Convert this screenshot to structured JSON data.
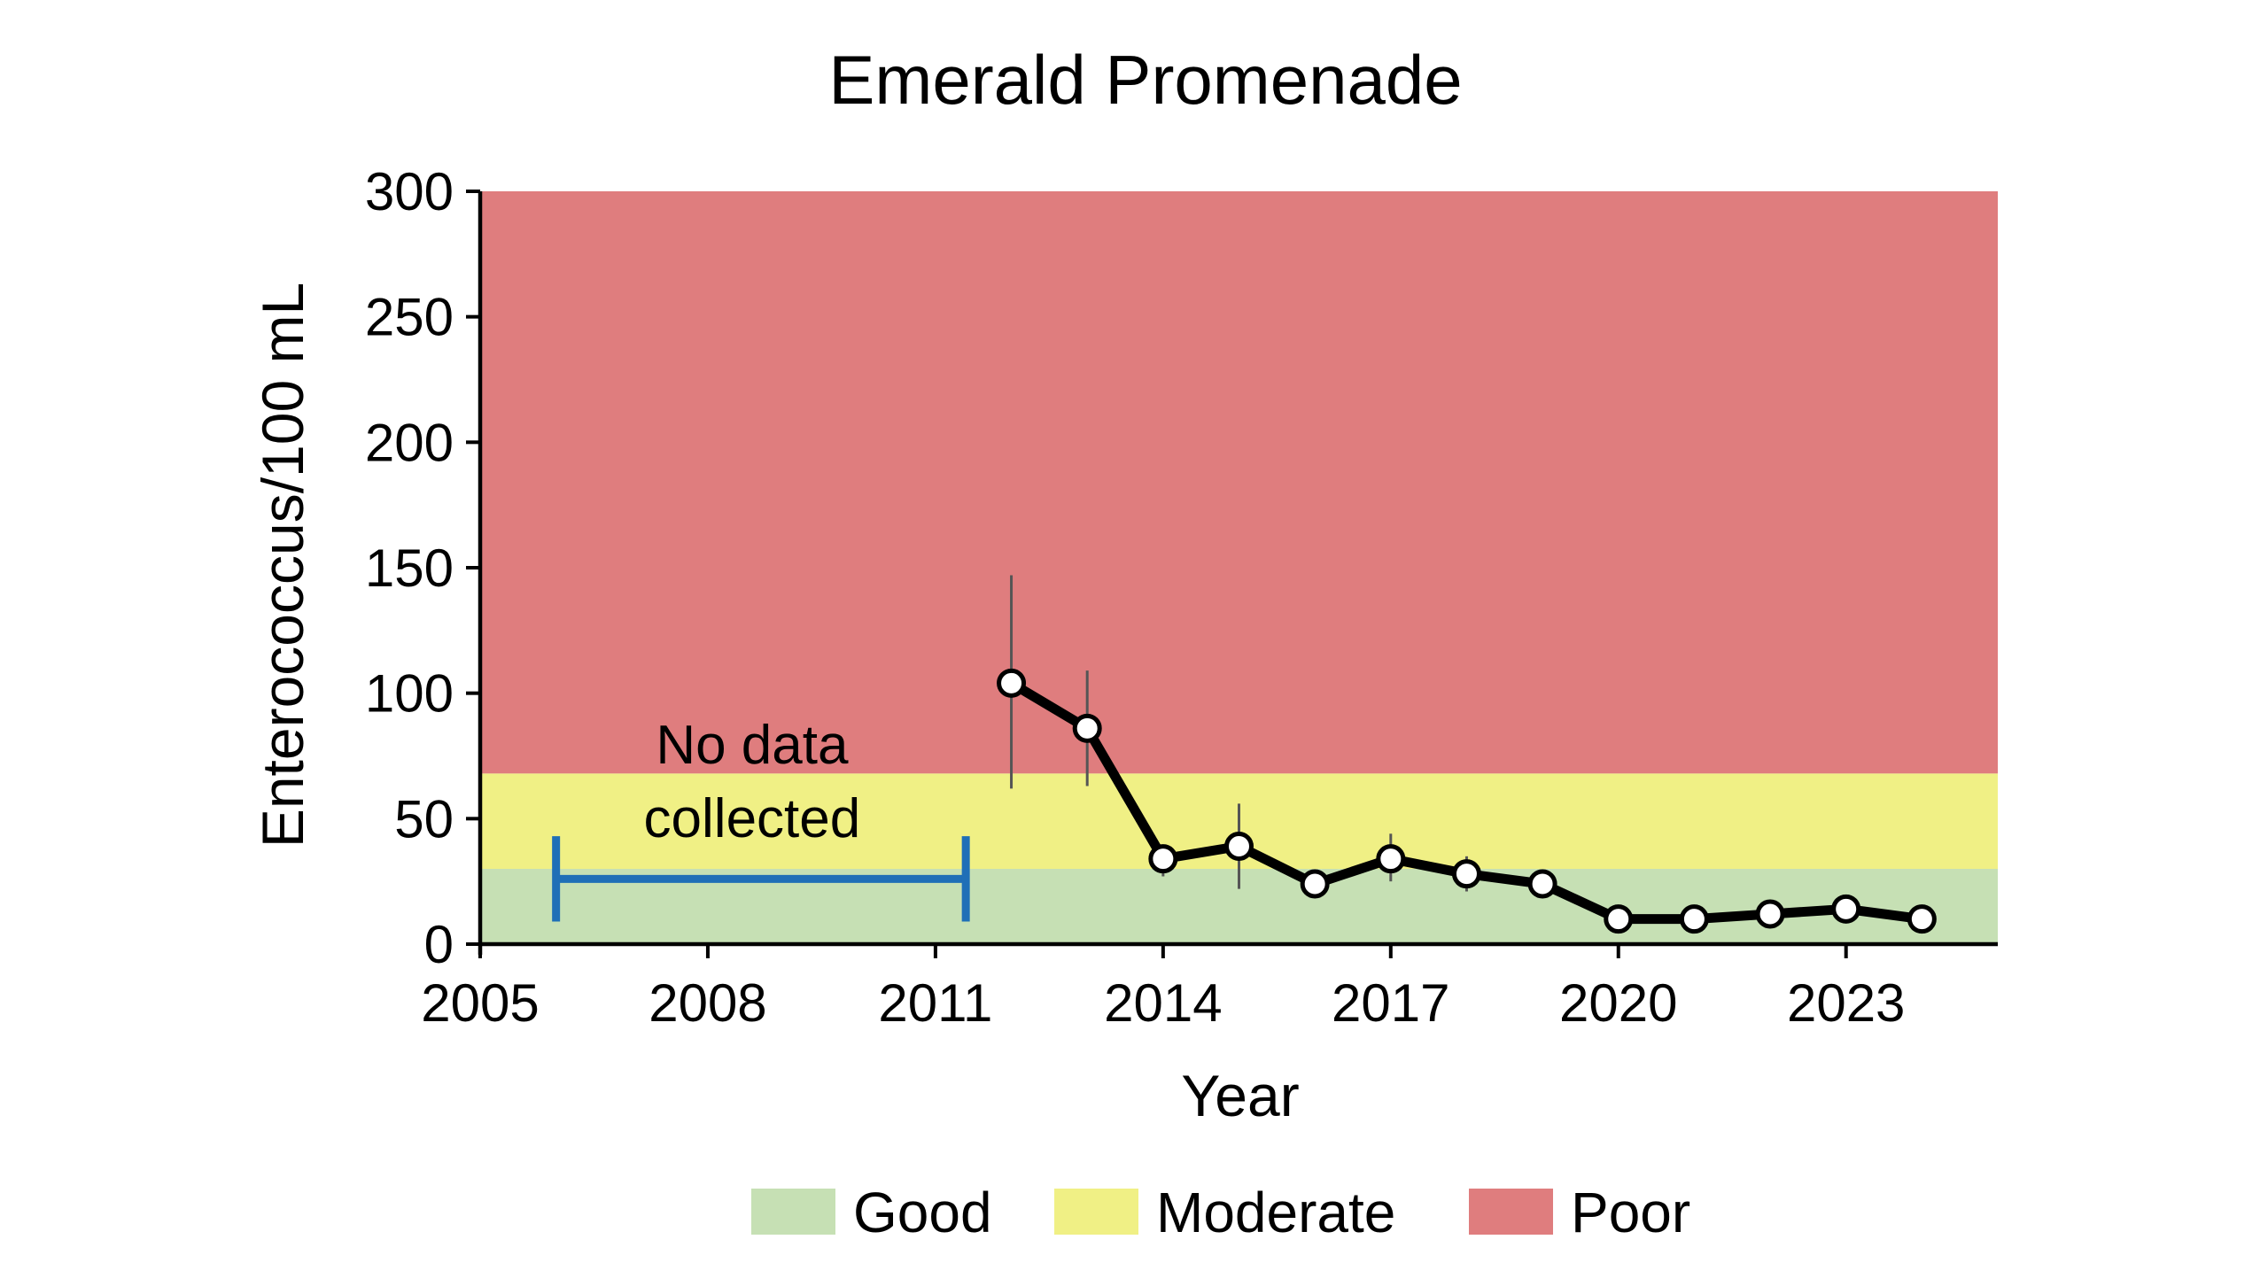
{
  "chart_data": {
    "type": "line",
    "title": "Emerald Promenade",
    "xlabel": "Year",
    "ylabel": "Enterococcus/100 mL",
    "xlim": [
      2005,
      2025
    ],
    "ylim": [
      0,
      300
    ],
    "x_ticks": [
      2005,
      2008,
      2011,
      2014,
      2017,
      2020,
      2023
    ],
    "y_ticks": [
      0,
      50,
      100,
      150,
      200,
      250,
      300
    ],
    "grid": false,
    "legend_position": "bottom",
    "bands": [
      {
        "name": "Good",
        "from": 0,
        "to": 30,
        "color": "#c6e0b4"
      },
      {
        "name": "Moderate",
        "from": 30,
        "to": 68,
        "color": "#f0f085"
      },
      {
        "name": "Poor",
        "from": 68,
        "to": 300,
        "color": "#df7d7e"
      }
    ],
    "series": [
      {
        "x": [
          2012,
          2013,
          2014,
          2015,
          2016,
          2017,
          2018,
          2019,
          2020,
          2021,
          2022,
          2023,
          2024
        ],
        "y": [
          104,
          86,
          34,
          39,
          24,
          34,
          28,
          24,
          10,
          10,
          12,
          14,
          10
        ],
        "error_low": [
          62,
          63,
          27,
          22,
          24,
          25,
          21,
          20,
          10,
          10,
          12,
          14,
          10
        ],
        "error_high": [
          147,
          109,
          39,
          56,
          24,
          44,
          35,
          28,
          10,
          10,
          12,
          14,
          10
        ],
        "line_color": "#000000",
        "marker": "open-circle"
      }
    ],
    "annotation": {
      "text_line1": "No data",
      "text_line2": "collected",
      "range": [
        2006,
        2011.4
      ],
      "value": 26,
      "bracket_height": 17,
      "color": "#1f6fb7"
    }
  }
}
